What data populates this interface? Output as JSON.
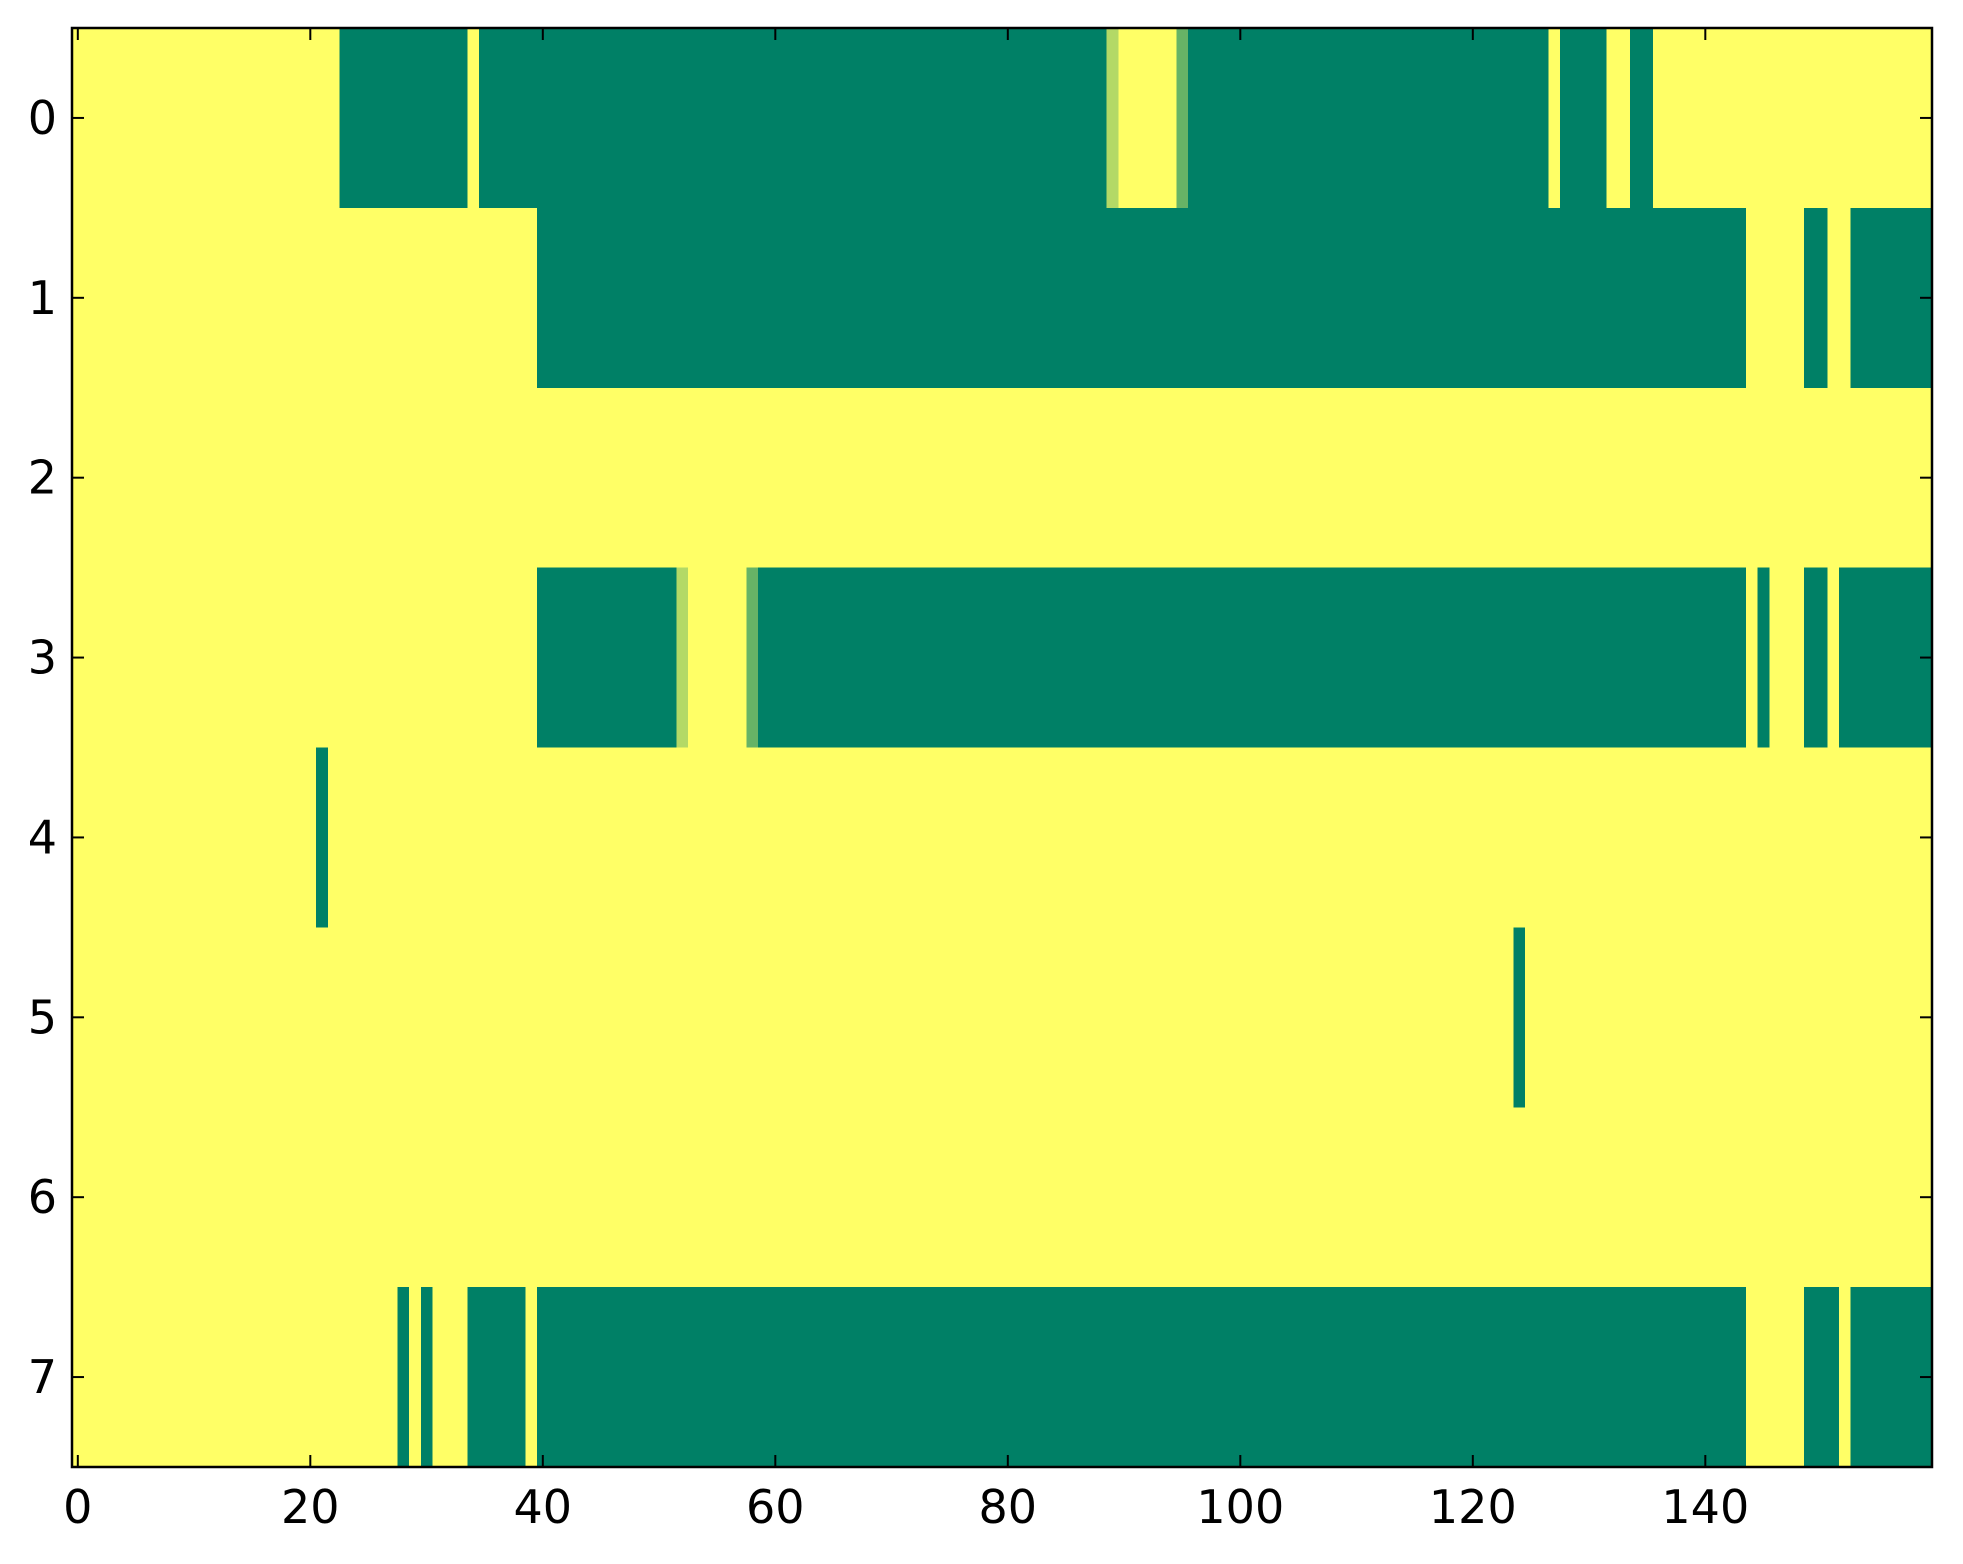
{
  "chart_data": {
    "type": "heatmap",
    "colormap": "summer",
    "xlim": [
      -0.5,
      159.5
    ],
    "ylim": [
      7.5,
      -0.5
    ],
    "xticks": [
      0,
      20,
      40,
      60,
      80,
      100,
      120,
      140
    ],
    "yticks": [
      0,
      1,
      2,
      3,
      4,
      5,
      6,
      7
    ],
    "values": [
      [
        1,
        1,
        1,
        1,
        1,
        1,
        1,
        1,
        1,
        1,
        1,
        1,
        1,
        1,
        1,
        1,
        1,
        1,
        1,
        1,
        1,
        1,
        1,
        0,
        0,
        0,
        0,
        0,
        0,
        0,
        0,
        0,
        0,
        0,
        1,
        0,
        0,
        0,
        0,
        0,
        0,
        0,
        0,
        0,
        0,
        0,
        0,
        0,
        0,
        0,
        0,
        0,
        0,
        0,
        0,
        0,
        0,
        0,
        0,
        0,
        0,
        0,
        0,
        0,
        0,
        0,
        0,
        0,
        0,
        0,
        0,
        0,
        0,
        0,
        0,
        0,
        0,
        0,
        0,
        0,
        0,
        0,
        0,
        0,
        0,
        0,
        0,
        0,
        0,
        0.7,
        1,
        1,
        1,
        1,
        1,
        0.4,
        0,
        0,
        0,
        0,
        0,
        0,
        0,
        0,
        0,
        0,
        0,
        0,
        0,
        0,
        0,
        0,
        0,
        0,
        0,
        0,
        0,
        0,
        0,
        0,
        0,
        0,
        0,
        0,
        0,
        0,
        0,
        1,
        0,
        0,
        0,
        0,
        1,
        1,
        0,
        0,
        1,
        1,
        1,
        1,
        1,
        1,
        1,
        1,
        1,
        1,
        1,
        1,
        1,
        1,
        1,
        1,
        1,
        1,
        1,
        1,
        1,
        1,
        1,
        1
      ],
      [
        1,
        1,
        1,
        1,
        1,
        1,
        1,
        1,
        1,
        1,
        1,
        1,
        1,
        1,
        1,
        1,
        1,
        1,
        1,
        1,
        1,
        1,
        1,
        1,
        1,
        1,
        1,
        1,
        1,
        1,
        1,
        1,
        1,
        1,
        1,
        1,
        1,
        1,
        1,
        1,
        0,
        0,
        0,
        0,
        0,
        0,
        0,
        0,
        0,
        0,
        0,
        0,
        0,
        0,
        0,
        0,
        0,
        0,
        0,
        0,
        0,
        0,
        0,
        0,
        0,
        0,
        0,
        0,
        0,
        0,
        0,
        0,
        0,
        0,
        0,
        0,
        0,
        0,
        0,
        0,
        0,
        0,
        0,
        0,
        0,
        0,
        0,
        0,
        0,
        0,
        0,
        0,
        0,
        0,
        0,
        0,
        0,
        0,
        0,
        0,
        0,
        0,
        0,
        0,
        0,
        0,
        0,
        0,
        0,
        0,
        0,
        0,
        0,
        0,
        0,
        0,
        0,
        0,
        0,
        0,
        0,
        0,
        0,
        0,
        0,
        0,
        0,
        0,
        0,
        0,
        0,
        0,
        0,
        0,
        0,
        0,
        0,
        0,
        0,
        0,
        0,
        0,
        0,
        0,
        1,
        1,
        1,
        1,
        1,
        0,
        0,
        1,
        1,
        0,
        0,
        0,
        0,
        0,
        0,
        0
      ],
      [
        1,
        1,
        1,
        1,
        1,
        1,
        1,
        1,
        1,
        1,
        1,
        1,
        1,
        1,
        1,
        1,
        1,
        1,
        1,
        1,
        1,
        1,
        1,
        1,
        1,
        1,
        1,
        1,
        1,
        1,
        1,
        1,
        1,
        1,
        1,
        1,
        1,
        1,
        1,
        1,
        1,
        1,
        1,
        1,
        1,
        1,
        1,
        1,
        1,
        1,
        1,
        1,
        1,
        1,
        1,
        1,
        1,
        1,
        1,
        1,
        1,
        1,
        1,
        1,
        1,
        1,
        1,
        1,
        1,
        1,
        1,
        1,
        1,
        1,
        1,
        1,
        1,
        1,
        1,
        1,
        1,
        1,
        1,
        1,
        1,
        1,
        1,
        1,
        1,
        1,
        1,
        1,
        1,
        1,
        1,
        1,
        1,
        1,
        1,
        1,
        1,
        1,
        1,
        1,
        1,
        1,
        1,
        1,
        1,
        1,
        1,
        1,
        1,
        1,
        1,
        1,
        1,
        1,
        1,
        1,
        1,
        1,
        1,
        1,
        1,
        1,
        1,
        1,
        1,
        1,
        1,
        1,
        1,
        1,
        1,
        1,
        1,
        1,
        1,
        1,
        1,
        1,
        1,
        1,
        1,
        1,
        1,
        1,
        1,
        1,
        1,
        1,
        1,
        1,
        1,
        1,
        1,
        1,
        1,
        1
      ],
      [
        1,
        1,
        1,
        1,
        1,
        1,
        1,
        1,
        1,
        1,
        1,
        1,
        1,
        1,
        1,
        1,
        1,
        1,
        1,
        1,
        1,
        1,
        1,
        1,
        1,
        1,
        1,
        1,
        1,
        1,
        1,
        1,
        1,
        1,
        1,
        1,
        1,
        1,
        1,
        1,
        0,
        0,
        0,
        0,
        0,
        0,
        0,
        0,
        0,
        0,
        0,
        0,
        0.7,
        1,
        1,
        1,
        1,
        1,
        0.4,
        0,
        0,
        0,
        0,
        0,
        0,
        0,
        0,
        0,
        0,
        0,
        0,
        0,
        0,
        0,
        0,
        0,
        0,
        0,
        0,
        0,
        0,
        0,
        0,
        0,
        0,
        0,
        0,
        0,
        0,
        0,
        0,
        0,
        0,
        0,
        0,
        0,
        0,
        0,
        0,
        0,
        0,
        0,
        0,
        0,
        0,
        0,
        0,
        0,
        0,
        0,
        0,
        0,
        0,
        0,
        0,
        0,
        0,
        0,
        0,
        0,
        0,
        0,
        0,
        0,
        0,
        0,
        0,
        0,
        0,
        0,
        0,
        0,
        0,
        0,
        0,
        0,
        0,
        0,
        0,
        0,
        0,
        0,
        0,
        0,
        1,
        0,
        1,
        1,
        1,
        0,
        0,
        1,
        0,
        0,
        0,
        0,
        0,
        0,
        0,
        0
      ],
      [
        1,
        1,
        1,
        1,
        1,
        1,
        1,
        1,
        1,
        1,
        1,
        1,
        1,
        1,
        1,
        1,
        1,
        1,
        1,
        1,
        1,
        0,
        1,
        1,
        1,
        1,
        1,
        1,
        1,
        1,
        1,
        1,
        1,
        1,
        1,
        1,
        1,
        1,
        1,
        1,
        1,
        1,
        1,
        1,
        1,
        1,
        1,
        1,
        1,
        1,
        1,
        1,
        1,
        1,
        1,
        1,
        1,
        1,
        1,
        1,
        1,
        1,
        1,
        1,
        1,
        1,
        1,
        1,
        1,
        1,
        1,
        1,
        1,
        1,
        1,
        1,
        1,
        1,
        1,
        1,
        1,
        1,
        1,
        1,
        1,
        1,
        1,
        1,
        1,
        1,
        1,
        1,
        1,
        1,
        1,
        1,
        1,
        1,
        1,
        1,
        1,
        1,
        1,
        1,
        1,
        1,
        1,
        1,
        1,
        1,
        1,
        1,
        1,
        1,
        1,
        1,
        1,
        1,
        1,
        1,
        1,
        1,
        1,
        1,
        1,
        1,
        1,
        1,
        1,
        1,
        1,
        1,
        1,
        1,
        1,
        1,
        1,
        1,
        1,
        1,
        1,
        1,
        1,
        1,
        1,
        1,
        1,
        1,
        1,
        1,
        1,
        1,
        1,
        1,
        1,
        1,
        1,
        1,
        1,
        1
      ],
      [
        1,
        1,
        1,
        1,
        1,
        1,
        1,
        1,
        1,
        1,
        1,
        1,
        1,
        1,
        1,
        1,
        1,
        1,
        1,
        1,
        1,
        1,
        1,
        1,
        1,
        1,
        1,
        1,
        1,
        1,
        1,
        1,
        1,
        1,
        1,
        1,
        1,
        1,
        1,
        1,
        1,
        1,
        1,
        1,
        1,
        1,
        1,
        1,
        1,
        1,
        1,
        1,
        1,
        1,
        1,
        1,
        1,
        1,
        1,
        1,
        1,
        1,
        1,
        1,
        1,
        1,
        1,
        1,
        1,
        1,
        1,
        1,
        1,
        1,
        1,
        1,
        1,
        1,
        1,
        1,
        1,
        1,
        1,
        1,
        1,
        1,
        1,
        1,
        1,
        1,
        1,
        1,
        1,
        1,
        1,
        1,
        1,
        1,
        1,
        1,
        1,
        1,
        1,
        1,
        1,
        1,
        1,
        1,
        1,
        1,
        1,
        1,
        1,
        1,
        1,
        1,
        1,
        1,
        1,
        1,
        1,
        1,
        1,
        1,
        0,
        1,
        1,
        1,
        1,
        1,
        1,
        1,
        1,
        1,
        1,
        1,
        1,
        1,
        1,
        1,
        1,
        1,
        1,
        1,
        1,
        1,
        1,
        1,
        1,
        1,
        1,
        1,
        1,
        1,
        1,
        1,
        1,
        1,
        1,
        1
      ],
      [
        1,
        1,
        1,
        1,
        1,
        1,
        1,
        1,
        1,
        1,
        1,
        1,
        1,
        1,
        1,
        1,
        1,
        1,
        1,
        1,
        1,
        1,
        1,
        1,
        1,
        1,
        1,
        1,
        1,
        1,
        1,
        1,
        1,
        1,
        1,
        1,
        1,
        1,
        1,
        1,
        1,
        1,
        1,
        1,
        1,
        1,
        1,
        1,
        1,
        1,
        1,
        1,
        1,
        1,
        1,
        1,
        1,
        1,
        1,
        1,
        1,
        1,
        1,
        1,
        1,
        1,
        1,
        1,
        1,
        1,
        1,
        1,
        1,
        1,
        1,
        1,
        1,
        1,
        1,
        1,
        1,
        1,
        1,
        1,
        1,
        1,
        1,
        1,
        1,
        1,
        1,
        1,
        1,
        1,
        1,
        1,
        1,
        1,
        1,
        1,
        1,
        1,
        1,
        1,
        1,
        1,
        1,
        1,
        1,
        1,
        1,
        1,
        1,
        1,
        1,
        1,
        1,
        1,
        1,
        1,
        1,
        1,
        1,
        1,
        1,
        1,
        1,
        1,
        1,
        1,
        1,
        1,
        1,
        1,
        1,
        1,
        1,
        1,
        1,
        1,
        1,
        1,
        1,
        1,
        1,
        1,
        1,
        1,
        1,
        1,
        1,
        1,
        1,
        1,
        1,
        1,
        1,
        1,
        1,
        1
      ],
      [
        1,
        1,
        1,
        1,
        1,
        1,
        1,
        1,
        1,
        1,
        1,
        1,
        1,
        1,
        1,
        1,
        1,
        1,
        1,
        1,
        1,
        1,
        1,
        1,
        1,
        1,
        1,
        1,
        0,
        1,
        0,
        1,
        1,
        1,
        0,
        0,
        0,
        0,
        0,
        1,
        0,
        0,
        0,
        0,
        0,
        0,
        0,
        0,
        0,
        0,
        0,
        0,
        0,
        0,
        0,
        0,
        0,
        0,
        0,
        0,
        0,
        0,
        0,
        0,
        0,
        0,
        0,
        0,
        0,
        0,
        0,
        0,
        0,
        0,
        0,
        0,
        0,
        0,
        0,
        0,
        0,
        0,
        0,
        0,
        0,
        0,
        0,
        0,
        0,
        0,
        0,
        0,
        0,
        0,
        0,
        0,
        0,
        0,
        0,
        0,
        0,
        0,
        0,
        0,
        0,
        0,
        0,
        0,
        0,
        0,
        0,
        0,
        0,
        0,
        0,
        0,
        0,
        0,
        0,
        0,
        0,
        0,
        0,
        0,
        0,
        0,
        0,
        0,
        0,
        0,
        0,
        0,
        0,
        0,
        0,
        0,
        0,
        0,
        0,
        0,
        0,
        0,
        0,
        0,
        1,
        1,
        1,
        1,
        1,
        0,
        0,
        0,
        1,
        0,
        0,
        0,
        0,
        0,
        0,
        0
      ]
    ]
  }
}
